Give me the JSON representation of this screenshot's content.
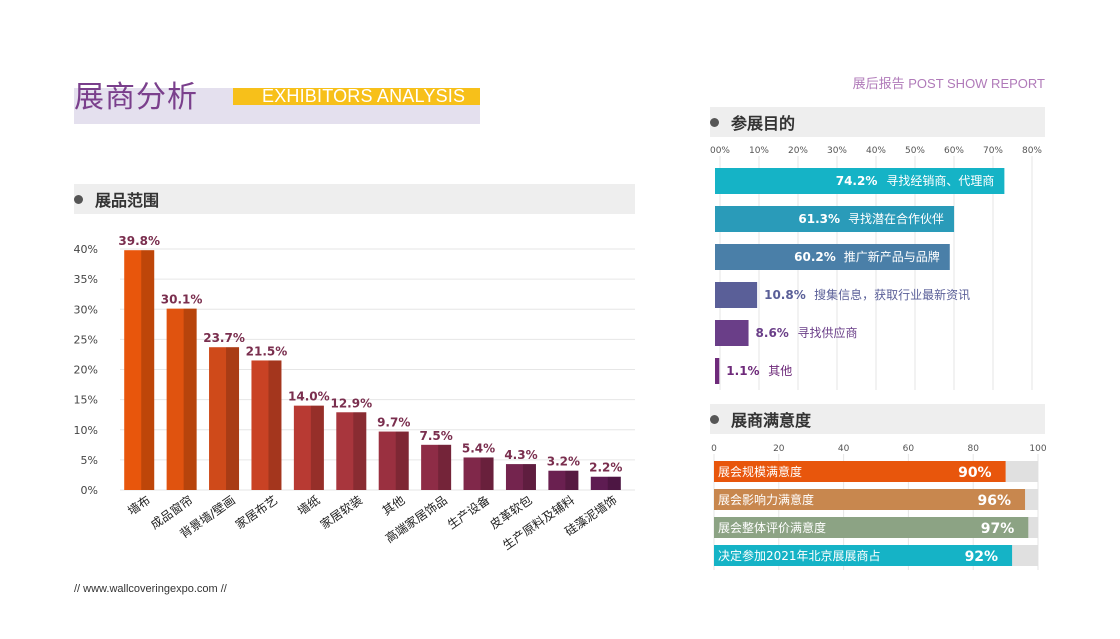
{
  "header": {
    "title": "展商分析",
    "title_en": "EXHIBITORS ANALYSIS",
    "report_tag": "展后报告   POST SHOW REPORT"
  },
  "sections": {
    "products": "展品范围",
    "purpose": "参展目的",
    "satisfaction": "展商满意度"
  },
  "footer": "//  www.wallcoveringexpo.com  //",
  "chart_data": [
    {
      "type": "bar",
      "id": "products",
      "categories": [
        "墙布",
        "成品窗帘",
        "背景墙/壁画",
        "家居布艺",
        "墙纸",
        "家居软装",
        "其他",
        "高端家居饰品",
        "生产设备",
        "皮革软包",
        "生产原料及辅料",
        "硅藻泥墙饰"
      ],
      "values": [
        39.8,
        30.1,
        23.7,
        21.5,
        14.0,
        12.9,
        9.7,
        7.5,
        5.4,
        4.3,
        3.2,
        2.2
      ],
      "value_labels": [
        "39.8%",
        "30.1%",
        "23.7%",
        "21.5%",
        "14.0%",
        "12.9%",
        "9.7%",
        "7.5%",
        "5.4%",
        "4.3%",
        "3.2%",
        "2.2%"
      ],
      "yticks": [
        "0%",
        "5%",
        "10%",
        "15%",
        "20%",
        "25%",
        "30%",
        "35%",
        "40%"
      ],
      "ylim": [
        0,
        40
      ],
      "grid": true,
      "colors": [
        "#e8560c",
        "#e0530f",
        "#cf4a1a",
        "#c94224",
        "#b83a33",
        "#a8363d",
        "#9a3040",
        "#8e2c46",
        "#80284a",
        "#74244e",
        "#6a2050",
        "#5e1c52"
      ]
    },
    {
      "type": "bar",
      "id": "purpose",
      "orientation": "horizontal",
      "categories": [
        "寻找经销商、代理商",
        "寻找潜在合作伙伴",
        "推广新产品与品牌",
        "搜集信息，获取行业最新资讯",
        "寻找供应商",
        "其他"
      ],
      "values": [
        74.2,
        61.3,
        60.2,
        10.8,
        8.6,
        1.1
      ],
      "value_labels": [
        "74.2%",
        "61.3%",
        "60.2%",
        "10.8%",
        "8.6%",
        "1.1%"
      ],
      "xticks": [
        "00%",
        "10%",
        "20%",
        "30%",
        "40%",
        "50%",
        "60%",
        "70%",
        "80%"
      ],
      "xlim": [
        0,
        80
      ],
      "grid": true,
      "colors": [
        "#15b3c6",
        "#2a9bb9",
        "#4a7fa8",
        "#5a5f98",
        "#6a3e88",
        "#6e2a7a"
      ]
    },
    {
      "type": "bar",
      "id": "satisfaction",
      "orientation": "horizontal",
      "categories": [
        "展会规模满意度",
        "展会影响力满意度",
        "展会整体评价满意度",
        "决定参加2021年北京展展商占"
      ],
      "values": [
        90,
        96,
        97,
        92
      ],
      "value_labels": [
        "90%",
        "96%",
        "97%",
        "92%"
      ],
      "xticks": [
        "0",
        "20",
        "40",
        "60",
        "80",
        "100"
      ],
      "xlim": [
        0,
        100
      ],
      "grid": true,
      "colors": [
        "#e8560c",
        "#c8874e",
        "#8ca384",
        "#15b3c6"
      ],
      "track_color": "#e0e0e0"
    }
  ]
}
